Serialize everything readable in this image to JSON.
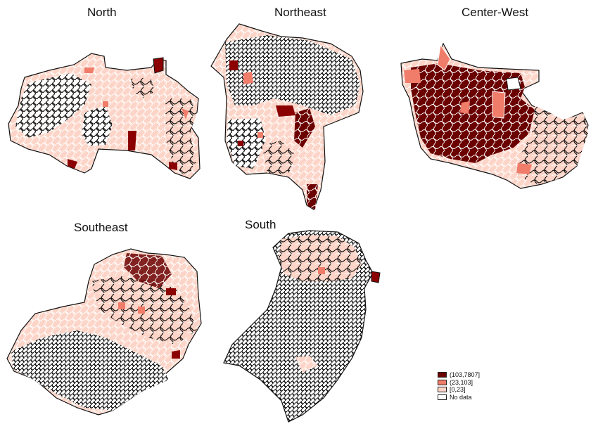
{
  "panels": [
    {
      "id": "north",
      "title": "North"
    },
    {
      "id": "northeast",
      "title": "Northeast"
    },
    {
      "id": "centerwest",
      "title": "Center-West"
    },
    {
      "id": "southeast",
      "title": "Southeast"
    },
    {
      "id": "south",
      "title": "South"
    }
  ],
  "legend": {
    "items": [
      {
        "label": "(103,7807]",
        "color": "#6b0000"
      },
      {
        "label": "(23,103]",
        "color": "#f07c6a"
      },
      {
        "label": "[0,23]",
        "color": "#fdd5c8"
      },
      {
        "label": "No data",
        "color": "#ffffff"
      }
    ]
  },
  "colors": {
    "outline": "#111111",
    "border_white": "#ffffff"
  }
}
